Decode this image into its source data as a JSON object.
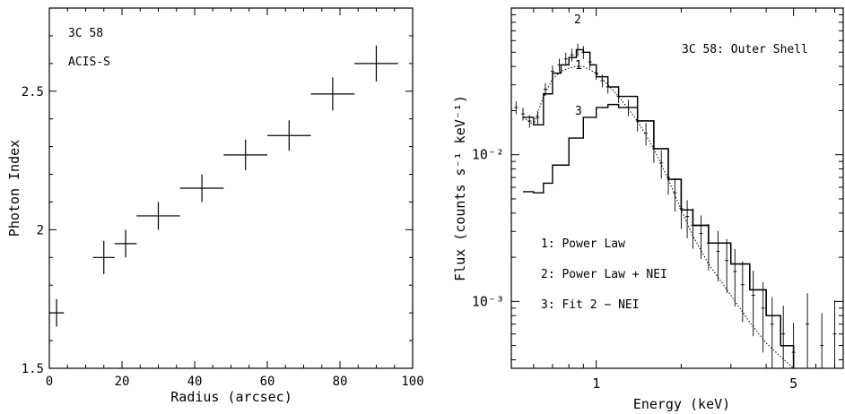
{
  "chart_data": [
    {
      "type": "scatter",
      "annotations": [
        "3C 58",
        "ACIS-S"
      ],
      "xlabel": "Radius (arcsec)",
      "ylabel": "Photon Index",
      "xlim": [
        0,
        100
      ],
      "ylim": [
        1.5,
        2.8
      ],
      "xticks": [
        "0",
        "20",
        "40",
        "60",
        "80",
        "100"
      ],
      "yticks": [
        "1.5",
        "2",
        "2.5"
      ],
      "grid": false,
      "points": [
        {
          "x": 2,
          "y": 1.7,
          "xerr": 2,
          "yerr": 0.05
        },
        {
          "x": 15,
          "y": 1.9,
          "xerr": 3,
          "yerr": 0.06
        },
        {
          "x": 21,
          "y": 1.95,
          "xerr": 3,
          "yerr": 0.05
        },
        {
          "x": 30,
          "y": 2.05,
          "xerr": 6,
          "yerr": 0.05
        },
        {
          "x": 42,
          "y": 2.15,
          "xerr": 6,
          "yerr": 0.05
        },
        {
          "x": 54,
          "y": 2.27,
          "xerr": 6,
          "yerr": 0.055
        },
        {
          "x": 66,
          "y": 2.34,
          "xerr": 6,
          "yerr": 0.055
        },
        {
          "x": 78,
          "y": 2.49,
          "xerr": 6,
          "yerr": 0.06
        },
        {
          "x": 90,
          "y": 2.6,
          "xerr": 6,
          "yerr": 0.065
        }
      ]
    },
    {
      "type": "line",
      "title": "3C 58: Outer Shell",
      "xlabel": "Energy (keV)",
      "ylabel": "Flux (counts s⁻¹ keV⁻¹)",
      "xscale": "log",
      "yscale": "log",
      "xlim": [
        0.5,
        7.5
      ],
      "ylim": [
        0.00035,
        0.1
      ],
      "xticks": [
        "1",
        "5"
      ],
      "yticks": [
        "10⁻²",
        "10⁻³"
      ],
      "grid": false,
      "legend": [
        "1: Power Law",
        "2: Power Law + NEI",
        "3: Fit 2 − NEI"
      ],
      "curve_labels": [
        "1",
        "2",
        "3"
      ],
      "series": [
        {
          "name": "1: Power Law",
          "style": "dotted",
          "x": [
            0.55,
            0.6,
            0.65,
            0.7,
            0.75,
            0.8,
            0.85,
            0.9,
            1.0,
            1.1,
            1.2,
            1.4,
            1.6,
            1.8,
            2.0,
            2.2,
            2.5,
            3.0,
            3.5,
            4.0,
            4.5,
            5.0
          ],
          "y": [
            0.018,
            0.016,
            0.025,
            0.033,
            0.037,
            0.039,
            0.04,
            0.04,
            0.036,
            0.03,
            0.025,
            0.017,
            0.011,
            0.0068,
            0.0042,
            0.0028,
            0.0018,
            0.0011,
            0.00072,
            0.00052,
            0.00042,
            0.00034
          ]
        },
        {
          "name": "2: Power Law + NEI",
          "style": "solid-histogram",
          "x": [
            0.55,
            0.6,
            0.65,
            0.7,
            0.75,
            0.8,
            0.85,
            0.9,
            0.95,
            1.0,
            1.1,
            1.2,
            1.4,
            1.6,
            1.8,
            2.0,
            2.2,
            2.5,
            3.0,
            3.5,
            4.0,
            4.5,
            5.0
          ],
          "y": [
            0.018,
            0.016,
            0.026,
            0.036,
            0.041,
            0.046,
            0.052,
            0.05,
            0.041,
            0.034,
            0.029,
            0.025,
            0.017,
            0.011,
            0.0068,
            0.0042,
            0.0033,
            0.0025,
            0.0018,
            0.0012,
            0.0008,
            0.0005,
            0.00034
          ]
        },
        {
          "name": "3: Fit 2 − NEI",
          "style": "solid-histogram",
          "x": [
            0.55,
            0.6,
            0.65,
            0.7,
            0.8,
            0.9,
            1.0,
            1.1,
            1.2,
            1.4,
            1.6,
            1.8,
            2.0,
            2.2,
            2.5,
            3.0,
            3.5,
            4.0,
            4.5,
            5.0
          ],
          "y": [
            0.0056,
            0.0055,
            0.0064,
            0.0085,
            0.013,
            0.018,
            0.021,
            0.022,
            0.021,
            0.017,
            0.011,
            0.0068,
            0.0042,
            0.0033,
            0.0025,
            0.0018,
            0.0012,
            0.0008,
            0.0005,
            0.00034
          ]
        }
      ],
      "data_points": {
        "x": [
          0.52,
          0.55,
          0.58,
          0.62,
          0.66,
          0.7,
          0.74,
          0.78,
          0.82,
          0.86,
          0.9,
          0.95,
          1.0,
          1.05,
          1.1,
          1.2,
          1.3,
          1.4,
          1.5,
          1.6,
          1.7,
          1.8,
          1.9,
          2.0,
          2.1,
          2.2,
          2.35,
          2.5,
          2.7,
          2.9,
          3.1,
          3.3,
          3.6,
          3.9,
          4.2,
          4.6,
          5.0,
          5.6,
          6.3,
          7.0
        ],
        "y": [
          0.021,
          0.019,
          0.017,
          0.018,
          0.028,
          0.037,
          0.041,
          0.045,
          0.048,
          0.052,
          0.05,
          0.043,
          0.036,
          0.032,
          0.029,
          0.025,
          0.021,
          0.017,
          0.014,
          0.011,
          0.0088,
          0.007,
          0.0055,
          0.0043,
          0.0038,
          0.0033,
          0.0029,
          0.0025,
          0.0022,
          0.0019,
          0.0016,
          0.0013,
          0.0011,
          0.0009,
          0.0007,
          0.0006,
          0.00045,
          0.0007,
          0.0005,
          0.0006
        ]
      }
    }
  ]
}
